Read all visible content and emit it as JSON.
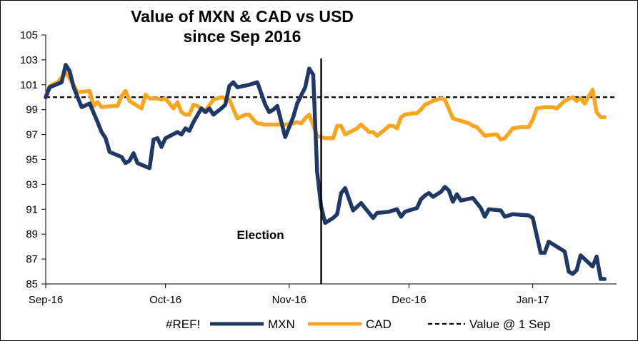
{
  "chart_data": {
    "type": "line",
    "title": [
      "Value of MXN & CAD vs USD",
      "since Sep 2016"
    ],
    "xlabel": "",
    "ylabel": "",
    "x_ticks": [
      "Sep-16",
      "Oct-16",
      "Nov-16",
      "Dec-16",
      "Jan-17"
    ],
    "x_tick_days": [
      0,
      30,
      61,
      91,
      122
    ],
    "x_domain_days": [
      0,
      143
    ],
    "x_units": "days from 1 Sep 2016",
    "ylim": [
      85,
      105
    ],
    "y_ticks": [
      85,
      87,
      89,
      91,
      93,
      95,
      97,
      99,
      101,
      103,
      105
    ],
    "grid": false,
    "legend_position": "bottom",
    "legend": [
      "#REF!",
      "MXN",
      "CAD",
      "Value @ 1 Sep"
    ],
    "reference_line": {
      "name": "Value @ 1 Sep",
      "y": 100,
      "color": "#000000",
      "style": "dashed"
    },
    "annotations": [
      {
        "text": "Election",
        "x_day": 69
      }
    ],
    "series": [
      {
        "name": "MXN",
        "color": "#1f3864",
        "points": [
          [
            0,
            100
          ],
          [
            1,
            100.8
          ],
          [
            4,
            101.2
          ],
          [
            5,
            102.6
          ],
          [
            6,
            102.1
          ],
          [
            7,
            100.8
          ],
          [
            9,
            99.2
          ],
          [
            11,
            99.5
          ],
          [
            13,
            98.0
          ],
          [
            14,
            97.2
          ],
          [
            15,
            96.7
          ],
          [
            16,
            95.6
          ],
          [
            19,
            95.2
          ],
          [
            20,
            94.7
          ],
          [
            21,
            94.9
          ],
          [
            22,
            95.5
          ],
          [
            23,
            94.7
          ],
          [
            26,
            94.3
          ],
          [
            27,
            96.6
          ],
          [
            28,
            96.7
          ],
          [
            29,
            96.0
          ],
          [
            30,
            96.7
          ],
          [
            33,
            97.2
          ],
          [
            34,
            97.0
          ],
          [
            35,
            97.5
          ],
          [
            36,
            97.3
          ],
          [
            37,
            98.0
          ],
          [
            39,
            99.1
          ],
          [
            40,
            98.8
          ],
          [
            41,
            99.1
          ],
          [
            42,
            98.6
          ],
          [
            44,
            99.1
          ],
          [
            45,
            99.4
          ],
          [
            46,
            100.9
          ],
          [
            47,
            101.2
          ],
          [
            48,
            100.8
          ],
          [
            51,
            101.0
          ],
          [
            53,
            101.2
          ],
          [
            55,
            99.4
          ],
          [
            56,
            98.8
          ],
          [
            57,
            99.0
          ],
          [
            58,
            99.3
          ],
          [
            60,
            96.8
          ],
          [
            61,
            97.6
          ],
          [
            62,
            98.4
          ],
          [
            63,
            99.5
          ],
          [
            65,
            100.8
          ],
          [
            66,
            102.3
          ],
          [
            67,
            101.8
          ],
          [
            68,
            94.0
          ],
          [
            69,
            91.2
          ],
          [
            70,
            89.9
          ],
          [
            72,
            90.3
          ],
          [
            73,
            90.6
          ],
          [
            74,
            92.3
          ],
          [
            75,
            92.7
          ],
          [
            77,
            90.9
          ],
          [
            79,
            91.5
          ],
          [
            80,
            91.1
          ],
          [
            81,
            90.7
          ],
          [
            82,
            90.3
          ],
          [
            83,
            90.7
          ],
          [
            86,
            90.8
          ],
          [
            88,
            91.0
          ],
          [
            89,
            90.4
          ],
          [
            90,
            90.8
          ],
          [
            93,
            91.1
          ],
          [
            94,
            91.8
          ],
          [
            95,
            92.1
          ],
          [
            96,
            92.3
          ],
          [
            97,
            92.0
          ],
          [
            99,
            92.4
          ],
          [
            100,
            92.8
          ],
          [
            101,
            92.5
          ],
          [
            102,
            91.6
          ],
          [
            103,
            92.2
          ],
          [
            104,
            91.7
          ],
          [
            107,
            91.9
          ],
          [
            109,
            91.1
          ],
          [
            110,
            90.4
          ],
          [
            111,
            91.0
          ],
          [
            114,
            90.9
          ],
          [
            115,
            90.4
          ],
          [
            117,
            90.6
          ],
          [
            121,
            90.5
          ],
          [
            122,
            90.3
          ],
          [
            124,
            87.5
          ],
          [
            125,
            87.5
          ],
          [
            126,
            88.4
          ],
          [
            128,
            88.0
          ],
          [
            130,
            87.6
          ],
          [
            131,
            86.0
          ],
          [
            132,
            85.8
          ],
          [
            133,
            86.1
          ],
          [
            134,
            87.3
          ],
          [
            135,
            87.0
          ],
          [
            137,
            86.4
          ],
          [
            138,
            87.2
          ],
          [
            139,
            85.4
          ],
          [
            140,
            85.4
          ]
        ]
      },
      {
        "name": "CAD",
        "color": "#f5a623",
        "points": [
          [
            0,
            100
          ],
          [
            1,
            100.9
          ],
          [
            3,
            101.2
          ],
          [
            5,
            102.0
          ],
          [
            6,
            101.5
          ],
          [
            8,
            100.4
          ],
          [
            11,
            100.5
          ],
          [
            12,
            99.3
          ],
          [
            13,
            99.6
          ],
          [
            14,
            99.2
          ],
          [
            17,
            99.3
          ],
          [
            18,
            99.3
          ],
          [
            19,
            100.1
          ],
          [
            20,
            100.5
          ],
          [
            21,
            99.7
          ],
          [
            23,
            99.3
          ],
          [
            24,
            99.1
          ],
          [
            25,
            100.2
          ],
          [
            26,
            99.9
          ],
          [
            27,
            99.9
          ],
          [
            28,
            99.9
          ],
          [
            29,
            99.8
          ],
          [
            30,
            99.9
          ],
          [
            31,
            99.5
          ],
          [
            32,
            99.1
          ],
          [
            33,
            99.6
          ],
          [
            34,
            98.8
          ],
          [
            35,
            98.6
          ],
          [
            36,
            98.6
          ],
          [
            37,
            99.4
          ],
          [
            38,
            99.3
          ],
          [
            40,
            98.9
          ],
          [
            42,
            99.8
          ],
          [
            44,
            100.0
          ],
          [
            46,
            99.8
          ],
          [
            48,
            98.3
          ],
          [
            50,
            98.6
          ],
          [
            51,
            98.6
          ],
          [
            52,
            98.2
          ],
          [
            53,
            97.9
          ],
          [
            55,
            97.8
          ],
          [
            58,
            97.8
          ],
          [
            60,
            97.8
          ],
          [
            62,
            97.9
          ],
          [
            63,
            98.0
          ],
          [
            64,
            97.9
          ],
          [
            65,
            98.3
          ],
          [
            66,
            98.6
          ],
          [
            68,
            96.9
          ],
          [
            70,
            96.7
          ],
          [
            71,
            96.7
          ],
          [
            72,
            96.7
          ],
          [
            73,
            97.7
          ],
          [
            74,
            97.7
          ],
          [
            75,
            97.0
          ],
          [
            78,
            97.5
          ],
          [
            79,
            97.8
          ],
          [
            80,
            97.5
          ],
          [
            81,
            97.2
          ],
          [
            82,
            97.2
          ],
          [
            83,
            96.9
          ],
          [
            85,
            97.4
          ],
          [
            86,
            97.7
          ],
          [
            87,
            97.7
          ],
          [
            88,
            97.5
          ],
          [
            89,
            98.4
          ],
          [
            90,
            98.6
          ],
          [
            92,
            98.7
          ],
          [
            93,
            98.7
          ],
          [
            94,
            99.0
          ],
          [
            95,
            99.4
          ],
          [
            97,
            99.7
          ],
          [
            99,
            99.9
          ],
          [
            100,
            99.8
          ],
          [
            102,
            98.3
          ],
          [
            104,
            98.1
          ],
          [
            106,
            97.9
          ],
          [
            107,
            97.7
          ],
          [
            108,
            97.6
          ],
          [
            110,
            96.9
          ],
          [
            112,
            97.0
          ],
          [
            113,
            97.0
          ],
          [
            114,
            96.6
          ],
          [
            115,
            96.7
          ],
          [
            117,
            97.5
          ],
          [
            119,
            97.6
          ],
          [
            121,
            97.6
          ],
          [
            122,
            98.2
          ],
          [
            123,
            99.1
          ],
          [
            125,
            99.2
          ],
          [
            127,
            99.2
          ],
          [
            128,
            99.1
          ],
          [
            130,
            99.7
          ],
          [
            132,
            100.0
          ],
          [
            133,
            99.7
          ],
          [
            134,
            99.9
          ],
          [
            135,
            99.5
          ],
          [
            137,
            100.6
          ],
          [
            138,
            98.8
          ],
          [
            139,
            98.4
          ],
          [
            140,
            98.4
          ]
        ]
      }
    ]
  }
}
